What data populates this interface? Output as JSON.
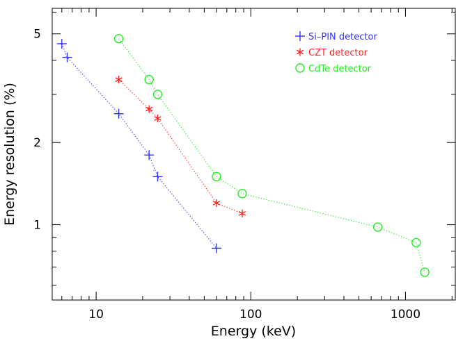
{
  "chart_data": {
    "type": "line",
    "title": "",
    "xlabel": "Energy (keV)",
    "ylabel": "Energy resolution (%)",
    "xscale": "log",
    "yscale": "log",
    "xlim": [
      5.2,
      2100
    ],
    "ylim": [
      0.53,
      6.2
    ],
    "xticks": [
      {
        "value": 10,
        "label": "10"
      },
      {
        "value": 100,
        "label": "100"
      },
      {
        "value": 1000,
        "label": "1000"
      }
    ],
    "yticks": [
      {
        "value": 1,
        "label": "1"
      },
      {
        "value": 2,
        "label": "2"
      },
      {
        "value": 5,
        "label": "5"
      }
    ],
    "grid": false,
    "legend_position": "top-right",
    "series": [
      {
        "name": "Si-PIN detector",
        "label": "Si–PIN detector",
        "color": "#3333ff",
        "marker": "plus",
        "x": [
          6.0,
          6.5,
          14,
          22,
          25,
          60
        ],
        "y": [
          4.6,
          4.1,
          2.55,
          1.8,
          1.5,
          0.82
        ]
      },
      {
        "name": "CZT detector",
        "label": "CZT  detector",
        "color": "#ff2222",
        "marker": "asterisk",
        "x": [
          14,
          22,
          25,
          60,
          88
        ],
        "y": [
          3.4,
          2.65,
          2.45,
          1.2,
          1.1
        ]
      },
      {
        "name": "CdTe detector",
        "label": "CdTe  detector",
        "color": "#22ee22",
        "marker": "circle",
        "x": [
          14,
          22,
          25,
          60,
          88,
          662,
          1173,
          1333
        ],
        "y": [
          4.8,
          3.4,
          3.0,
          1.5,
          1.3,
          0.98,
          0.86,
          0.67
        ]
      }
    ]
  }
}
